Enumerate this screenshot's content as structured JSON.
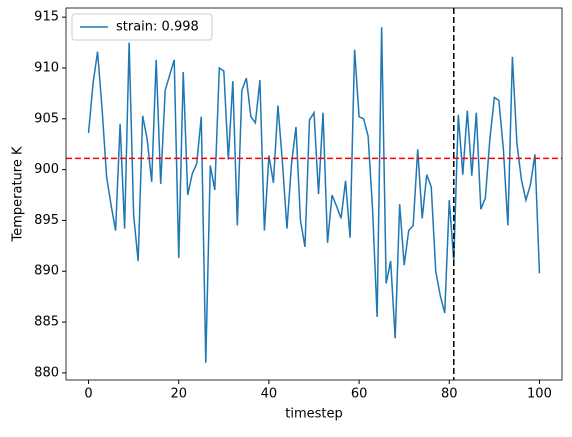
{
  "chart_data": {
    "type": "line",
    "xlabel": "timestep",
    "ylabel": "Temperature K",
    "x": [
      0,
      1,
      2,
      3,
      4,
      5,
      6,
      7,
      8,
      9,
      10,
      11,
      12,
      13,
      14,
      15,
      16,
      17,
      18,
      19,
      20,
      21,
      22,
      23,
      24,
      25,
      26,
      27,
      28,
      29,
      30,
      31,
      32,
      33,
      34,
      35,
      36,
      37,
      38,
      39,
      40,
      41,
      42,
      43,
      44,
      45,
      46,
      47,
      48,
      49,
      50,
      51,
      52,
      53,
      54,
      55,
      56,
      57,
      58,
      59,
      60,
      61,
      62,
      63,
      64,
      65,
      66,
      67,
      68,
      69,
      70,
      71,
      72,
      73,
      74,
      75,
      76,
      77,
      78,
      79,
      80,
      81,
      82,
      83,
      84,
      85,
      86,
      87,
      88,
      89,
      90,
      91,
      92,
      93,
      94,
      95,
      96,
      97,
      98,
      99,
      100
    ],
    "series": [
      {
        "name": "strain: 0.998",
        "color": "#1f77b4",
        "values": [
          903.6,
          908.5,
          911.6,
          906,
          899.3,
          896.5,
          894,
          904.5,
          894.2,
          912.5,
          895.5,
          891,
          905.3,
          903,
          898.8,
          910.8,
          898.6,
          907.8,
          909.3,
          910.8,
          891.3,
          909.6,
          897.5,
          899.6,
          900.6,
          905.2,
          881,
          900.4,
          898,
          910,
          909.7,
          901,
          908.7,
          894.5,
          907.8,
          909,
          905.2,
          904.6,
          908.8,
          894,
          901.4,
          898.7,
          906.3,
          900.7,
          894.2,
          900.5,
          904.2,
          895,
          892.4,
          904.9,
          905.6,
          897.6,
          905.6,
          892.8,
          897.5,
          896.4,
          895.2,
          898.9,
          893.3,
          911.8,
          905.2,
          905,
          903.3,
          896,
          885.5,
          914,
          888.8,
          891,
          883.4,
          896.6,
          890.6,
          894,
          894.5,
          902,
          895.2,
          899.5,
          898.3,
          890,
          887.6,
          885.9,
          897,
          891,
          905.4,
          899.5,
          905.8,
          899.4,
          905.6,
          896.1,
          897.2,
          903,
          907.1,
          906.8,
          902,
          894.5,
          911.1,
          902.6,
          899,
          897,
          898.5,
          901.5,
          889.8
        ]
      }
    ],
    "hline": 901.1,
    "hline_color": "#ff0000",
    "vline": 81,
    "vline_color": "#000000",
    "xlim": [
      -5,
      105
    ],
    "xticks": [
      0,
      20,
      40,
      60,
      80,
      100
    ],
    "ylim": [
      879.3,
      915.9
    ],
    "yticks": [
      880,
      885,
      890,
      895,
      900,
      905,
      910,
      915
    ],
    "legend": "upper left"
  }
}
